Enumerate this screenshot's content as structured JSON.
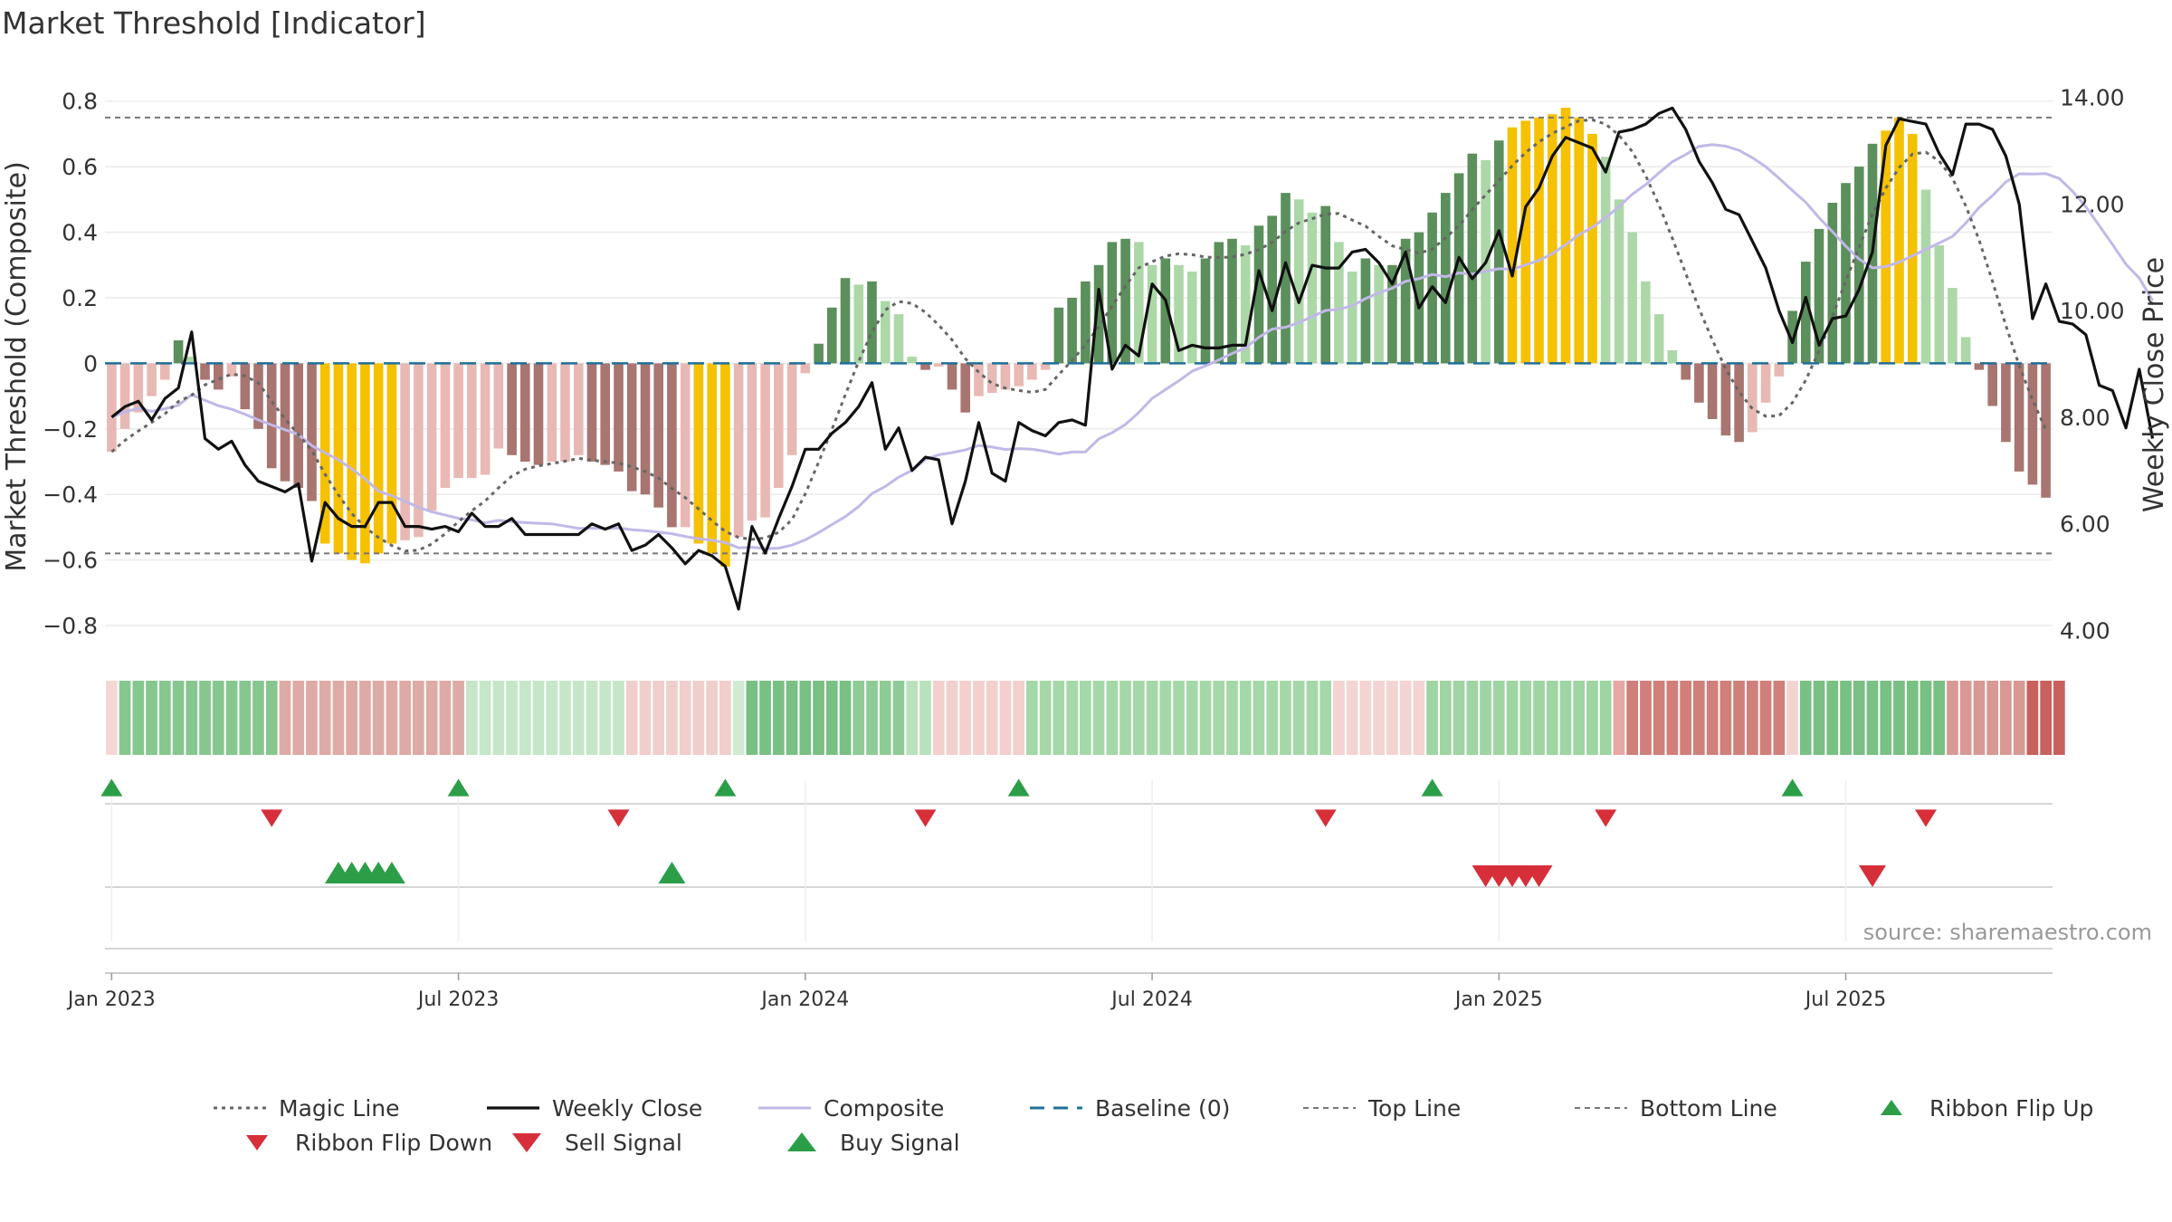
{
  "title": "Market Threshold [Indicator]",
  "source_label": "source: sharemaestro.com",
  "colors": {
    "dark_green": "#5b8f5b",
    "light_green": "#acd8a8",
    "dark_red": "#a87570",
    "light_red": "#e8b9b4",
    "gold": "#f5c100",
    "weekly_close": "#111111",
    "composite": "#c2b8e8",
    "magic": "#666666",
    "baseline": "#1f6f9a",
    "threshold": "#777777",
    "buy": "#2c9e48",
    "sell": "#d62f3a"
  },
  "chart_data": {
    "type": "bar",
    "title": "Market Threshold [Indicator]",
    "ylabel": "Market Threshold (Composite)",
    "y2label": "Weekly Close Price",
    "ylim": [
      -0.88,
      0.86
    ],
    "y2lim": [
      3.6,
      14.3
    ],
    "yticks": [
      "0.8",
      "0.6",
      "0.4",
      "0.2",
      "0",
      "−0.2",
      "−0.4",
      "−0.6",
      "−0.8"
    ],
    "ytick_values": [
      0.8,
      0.6,
      0.4,
      0.2,
      0,
      -0.2,
      -0.4,
      -0.6,
      -0.8
    ],
    "y2ticks": [
      "14.00",
      "12.00",
      "10.00",
      "8.00",
      "6.00",
      "4.00"
    ],
    "y2tick_values": [
      14,
      12,
      10,
      8,
      6,
      4
    ],
    "xticks": [
      "Jan 2023",
      "Jul 2023",
      "Jan 2024",
      "Jul 2024",
      "Jan 2025",
      "Jul 2025"
    ],
    "xtick_weeks": [
      0,
      26,
      52,
      78,
      104,
      130
    ],
    "top_line": 0.75,
    "bottom_line": -0.58,
    "grid": true,
    "legend_position": "bottom",
    "composite_bars": [
      -0.27,
      -0.2,
      -0.15,
      -0.1,
      -0.05,
      0.07,
      0.02,
      -0.05,
      -0.08,
      -0.04,
      -0.14,
      -0.2,
      -0.32,
      -0.36,
      -0.38,
      -0.42,
      -0.55,
      -0.58,
      -0.6,
      -0.61,
      -0.58,
      -0.55,
      -0.54,
      -0.53,
      -0.45,
      -0.38,
      -0.35,
      -0.35,
      -0.34,
      -0.26,
      -0.28,
      -0.3,
      -0.31,
      -0.3,
      -0.3,
      -0.28,
      -0.3,
      -0.31,
      -0.33,
      -0.39,
      -0.4,
      -0.44,
      -0.5,
      -0.5,
      -0.55,
      -0.58,
      -0.62,
      -0.53,
      -0.48,
      -0.47,
      -0.38,
      -0.28,
      -0.03,
      0.06,
      0.17,
      0.26,
      0.24,
      0.25,
      0.19,
      0.15,
      0.02,
      -0.02,
      -0.01,
      -0.08,
      -0.15,
      -0.1,
      -0.09,
      -0.08,
      -0.07,
      -0.05,
      -0.02,
      0.17,
      0.2,
      0.25,
      0.3,
      0.37,
      0.38,
      0.37,
      0.3,
      0.32,
      0.3,
      0.28,
      0.32,
      0.37,
      0.38,
      0.36,
      0.42,
      0.45,
      0.52,
      0.5,
      0.46,
      0.48,
      0.37,
      0.28,
      0.32,
      0.3,
      0.3,
      0.38,
      0.4,
      0.46,
      0.52,
      0.58,
      0.64,
      0.62,
      0.68,
      0.72,
      0.74,
      0.75,
      0.76,
      0.78,
      0.75,
      0.7,
      0.63,
      0.5,
      0.4,
      0.25,
      0.15,
      0.04,
      -0.05,
      -0.12,
      -0.17,
      -0.22,
      -0.24,
      -0.21,
      -0.12,
      -0.04,
      0.16,
      0.31,
      0.41,
      0.49,
      0.55,
      0.6,
      0.67,
      0.71,
      0.75,
      0.7,
      0.53,
      0.36,
      0.23,
      0.08,
      -0.02,
      -0.13,
      -0.24,
      -0.33,
      -0.37,
      -0.41
    ],
    "weekly_close": [
      8.0,
      8.2,
      8.3,
      7.95,
      8.35,
      8.55,
      9.6,
      7.6,
      7.4,
      7.55,
      7.1,
      6.8,
      6.7,
      6.6,
      6.75,
      5.3,
      6.4,
      6.1,
      5.95,
      5.95,
      6.4,
      6.4,
      5.95,
      5.95,
      5.9,
      5.95,
      5.85,
      6.2,
      5.95,
      5.95,
      6.1,
      5.8,
      5.8,
      5.8,
      5.8,
      5.8,
      6.0,
      5.9,
      6.0,
      5.5,
      5.6,
      5.8,
      5.55,
      5.25,
      5.5,
      5.4,
      5.2,
      4.4,
      5.95,
      5.45,
      6.1,
      6.7,
      7.4,
      7.4,
      7.7,
      7.9,
      8.2,
      8.65,
      7.4,
      7.8,
      7.0,
      7.25,
      7.2,
      6.0,
      6.8,
      7.9,
      6.95,
      6.8,
      7.9,
      7.75,
      7.65,
      7.9,
      7.95,
      7.85,
      10.4,
      8.9,
      9.35,
      9.15,
      10.5,
      10.2,
      9.25,
      9.35,
      9.3,
      9.3,
      9.35,
      9.35,
      10.75,
      10.0,
      10.9,
      10.15,
      10.85,
      10.8,
      10.8,
      11.1,
      11.15,
      10.9,
      10.5,
      11.1,
      10.05,
      10.45,
      10.15,
      11.0,
      10.6,
      10.9,
      11.5,
      10.65,
      11.95,
      12.3,
      12.9,
      13.25,
      13.15,
      13.05,
      12.6,
      13.35,
      13.4,
      13.5,
      13.7,
      13.8,
      13.4,
      12.8,
      12.4,
      11.9,
      11.8,
      11.3,
      10.8,
      10.0,
      9.4,
      10.25,
      9.35,
      9.85,
      9.9,
      10.4,
      11.1,
      13.1,
      13.6,
      13.55,
      13.5,
      12.95,
      12.55,
      13.5,
      13.5,
      13.4,
      12.9,
      12.0,
      9.85,
      10.5,
      9.8,
      9.75,
      9.55,
      8.6,
      8.5,
      7.8,
      8.9,
      7.6
    ]
  },
  "ribbon": {
    "segments": [
      [
        0,
        1,
        "#f5d8d6"
      ],
      [
        1,
        13,
        "#86c78f"
      ],
      [
        13,
        27,
        "#deaaa6"
      ],
      [
        27,
        39,
        "#c5e6c8"
      ],
      [
        39,
        47,
        "#f0cecb"
      ],
      [
        47,
        48,
        "#d1ebd3"
      ],
      [
        48,
        56,
        "#78c083"
      ],
      [
        56,
        60,
        "#8fcb96"
      ],
      [
        60,
        62,
        "#b9e1bc"
      ],
      [
        62,
        69,
        "#f3cfcd"
      ],
      [
        69,
        92,
        "#a5d8a8"
      ],
      [
        92,
        99,
        "#f3d4d2"
      ],
      [
        99,
        113,
        "#9fd4a3"
      ],
      [
        113,
        114,
        "#e8a7a2"
      ],
      [
        114,
        126,
        "#d07f7a"
      ],
      [
        126,
        127,
        "#f1d4d1"
      ],
      [
        127,
        138,
        "#78c083"
      ],
      [
        138,
        144,
        "#d89995"
      ],
      [
        144,
        147,
        "#c9605d"
      ]
    ]
  },
  "markers": {
    "ribbon_flip_up_weeks": [
      0,
      26,
      46,
      68,
      99,
      126
    ],
    "ribbon_flip_down_weeks": [
      12,
      38,
      61,
      91,
      112,
      136
    ],
    "buy_signal_weeks": [
      17,
      18,
      19,
      20,
      21,
      42
    ],
    "sell_signal_weeks": [
      103,
      104,
      105,
      106,
      107,
      132
    ]
  },
  "legend": [
    {
      "label": "Magic Line",
      "icon": "dotted-line-icon"
    },
    {
      "label": "Weekly Close",
      "icon": "solid-line-icon"
    },
    {
      "label": "Composite",
      "icon": "solid-line-icon"
    },
    {
      "label": "Baseline (0)",
      "icon": "dashed-line-icon"
    },
    {
      "label": "Top Line",
      "icon": "dotted-line-icon"
    },
    {
      "label": "Bottom Line",
      "icon": "dotted-line-icon"
    },
    {
      "label": "Ribbon Flip Up",
      "icon": "triangle-up-icon"
    },
    {
      "label": "Ribbon Flip Down",
      "icon": "triangle-down-icon"
    },
    {
      "label": "Sell Signal",
      "icon": "triangle-down-icon"
    },
    {
      "label": "Buy Signal",
      "icon": "triangle-up-icon"
    }
  ]
}
